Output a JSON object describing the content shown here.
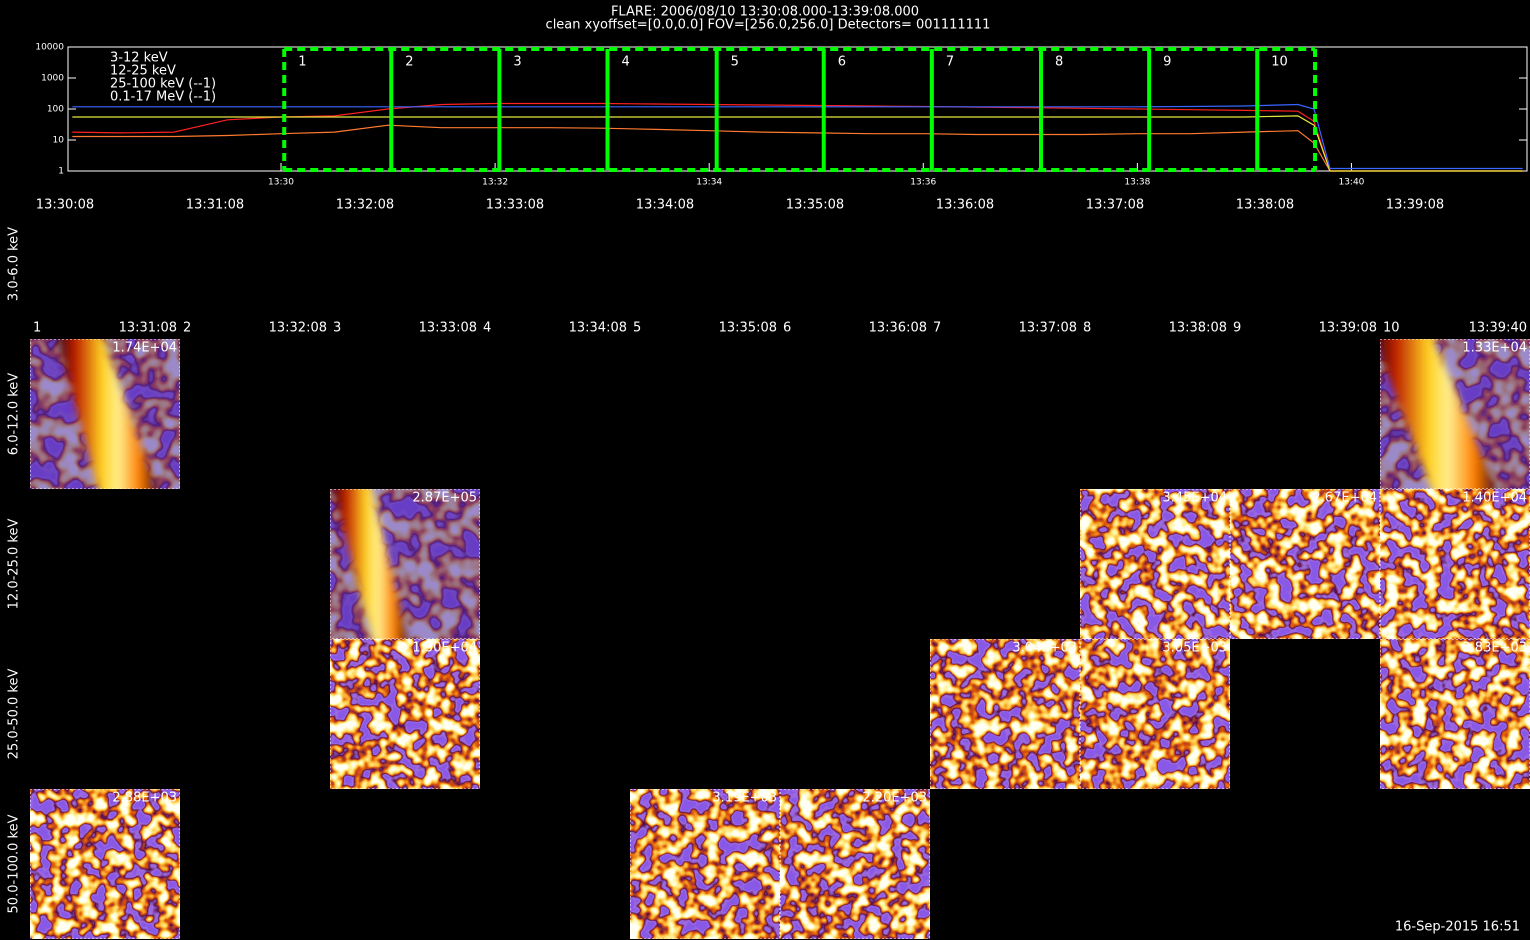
{
  "header": {
    "title": "FLARE: 2006/08/10 13:30:08.000-13:39:08.000",
    "subtitle": "clean   xyoffset=[0.0,0.0]   FOV=[256.0,256.0]   Detectors= 001111111"
  },
  "chart_data": {
    "type": "line",
    "log_y": true,
    "legend": "top-left",
    "xlim": [
      28.01,
      41.64
    ],
    "xticks": [
      {
        "value": 30,
        "label": "13:30"
      },
      {
        "value": 32,
        "label": "13:32"
      },
      {
        "value": 34,
        "label": "13:34"
      },
      {
        "value": 36,
        "label": "13:36"
      },
      {
        "value": 38,
        "label": "13:38"
      },
      {
        "value": 40,
        "label": "13:40"
      }
    ],
    "ylim": [
      1,
      10000
    ],
    "yticks": [
      1,
      10,
      100,
      1000,
      10000
    ],
    "x": [
      28.05,
      28.5,
      29.0,
      29.5,
      30.0,
      30.5,
      31.0,
      31.5,
      32.0,
      32.5,
      33.0,
      33.5,
      34.0,
      34.5,
      35.0,
      35.5,
      36.0,
      36.5,
      37.0,
      37.5,
      38.0,
      38.5,
      39.0,
      39.5,
      39.65,
      39.8,
      41.6
    ],
    "series": [
      {
        "name": "3-12 keV",
        "color": "#ff2020",
        "values": [
          18,
          17,
          18,
          45,
          55,
          60,
          100,
          140,
          150,
          150,
          150,
          145,
          140,
          135,
          130,
          125,
          120,
          115,
          110,
          105,
          100,
          95,
          90,
          85,
          40,
          1,
          1
        ]
      },
      {
        "name": "12-25 keV",
        "color": "#ff7a30",
        "values": [
          13,
          13,
          13,
          14,
          16,
          18,
          30,
          25,
          25,
          25,
          24,
          22,
          20,
          18,
          17,
          16,
          16,
          15,
          15,
          15,
          16,
          16,
          18,
          20,
          8,
          1,
          1
        ]
      },
      {
        "name": "25-100 keV (--1)",
        "color": "#e6e640",
        "values": [
          55,
          55,
          55,
          55,
          55,
          55,
          55,
          55,
          55,
          55,
          55,
          55,
          55,
          55,
          55,
          55,
          55,
          55,
          55,
          55,
          55,
          55,
          55,
          60,
          30,
          1,
          1
        ]
      },
      {
        "name": "0.1-17 MeV (--1)",
        "color": "#3a64ff",
        "values": [
          118,
          118,
          118,
          118,
          118,
          118,
          118,
          118,
          118,
          118,
          118,
          118,
          118,
          118,
          118,
          118,
          118,
          118,
          118,
          118,
          118,
          120,
          125,
          140,
          100,
          1.2,
          1.2
        ]
      }
    ],
    "intervals": {
      "color": "#00ff00",
      "bounds": [
        30.03,
        31.03,
        32.04,
        33.05,
        34.07,
        35.07,
        36.08,
        37.1,
        38.11,
        39.12,
        39.66
      ],
      "labels": [
        "1",
        "2",
        "3",
        "4",
        "5",
        "6",
        "7",
        "8",
        "9",
        "10"
      ]
    }
  },
  "time_labels": [
    "13:30:08",
    "13:31:08",
    "13:32:08",
    "13:33:08",
    "13:34:08",
    "13:35:08",
    "13:36:08",
    "13:37:08",
    "13:38:08",
    "13:39:08"
  ],
  "image_grid": {
    "column_times": [
      "13:31:08",
      "13:32:08",
      "13:33:08",
      "13:34:08",
      "13:35:08",
      "13:36:08",
      "13:37:08",
      "13:38:08",
      "13:39:08",
      "13:39:40"
    ],
    "rows": [
      {
        "energy": "3.0-6.0 keV",
        "images": [
          null,
          null,
          null,
          null,
          null,
          null,
          null,
          null,
          null,
          null
        ]
      },
      {
        "energy": "6.0-12.0 keV",
        "images": [
          {
            "value": 17400,
            "label": "1.74E+04"
          },
          null,
          null,
          null,
          null,
          null,
          null,
          null,
          null,
          {
            "value": 13300,
            "label": "1.33E+04"
          }
        ]
      },
      {
        "energy": "12.0-25.0 keV",
        "images": [
          null,
          null,
          {
            "value": 287000,
            "label": "2.87E+05"
          },
          null,
          null,
          null,
          null,
          {
            "value": 34500,
            "label": "3.45E+04"
          },
          {
            "value": 26700,
            "label": "2.67E+04"
          },
          {
            "value": 14000,
            "label": "1.40E+04"
          }
        ]
      },
      {
        "energy": "25.0-50.0 keV",
        "images": [
          null,
          null,
          {
            "value": 13000,
            "label": "1.30E+04"
          },
          null,
          null,
          null,
          {
            "value": 3040,
            "label": "3.04E+03"
          },
          {
            "value": 3050,
            "label": "3.05E+03"
          },
          null,
          {
            "value": 2830,
            "label": "2.83E+03"
          }
        ]
      },
      {
        "energy": "50.0-100.0 keV",
        "images": [
          {
            "value": 2880,
            "label": "2.88E+03"
          },
          null,
          null,
          null,
          {
            "value": 3190,
            "label": "3.19E+03"
          },
          {
            "value": 2200,
            "label": "2.20E+03"
          },
          null,
          null,
          null,
          null
        ]
      }
    ]
  },
  "footer": "16-Sep-2015 16:51"
}
